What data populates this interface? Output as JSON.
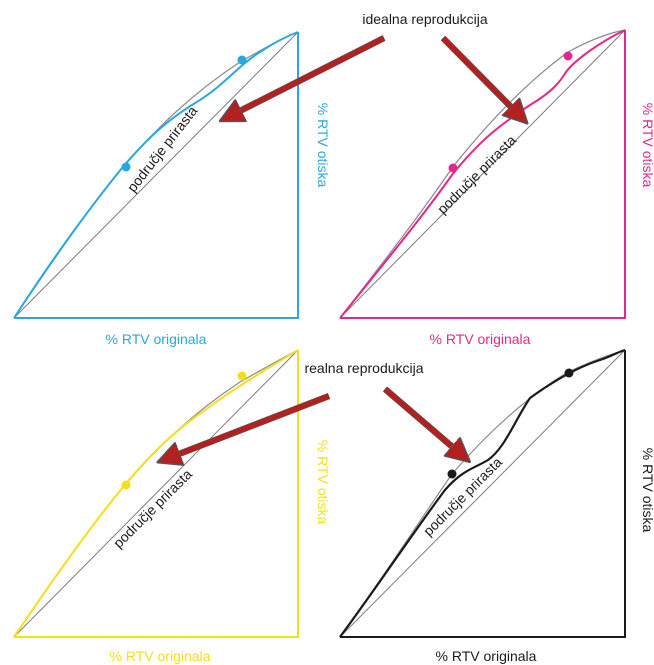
{
  "annotations": {
    "ideal": "idealna reprodukcija",
    "real": "realna reprodukcija"
  },
  "panels": [
    {
      "id": "cyan",
      "color": "#29a8e0",
      "x_axis_label": "% RTV originala",
      "y_axis_label": "% RTV otiska",
      "area_label": "područje prirasta"
    },
    {
      "id": "magenta",
      "color": "#e2298a",
      "x_axis_label": "% RTV originala",
      "y_axis_label": "% RTV otiska",
      "area_label": "područje prirasta"
    },
    {
      "id": "yellow",
      "color": "#f5de1c",
      "x_axis_label": "% RTV originala",
      "y_axis_label": "% RTV otiska",
      "area_label": "područje prirasta"
    },
    {
      "id": "black",
      "color": "#1a1a1a",
      "x_axis_label": "% RTV originala",
      "y_axis_label": "% RTV otiska",
      "area_label": "područje prirasta"
    }
  ],
  "colors": {
    "ideal_line": "#7a7a7a",
    "reference_curve": "#8a8a8a",
    "arrow": "#b3201f",
    "arrow_outline": "#555555",
    "annotation_text": "#1a1a1a"
  }
}
